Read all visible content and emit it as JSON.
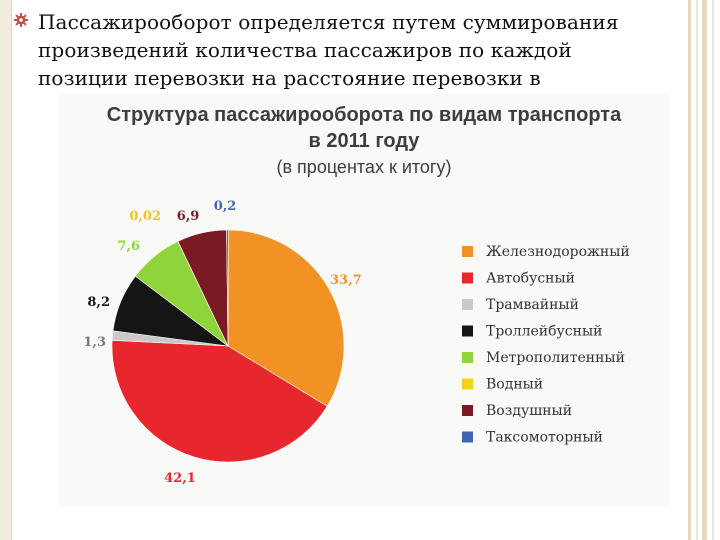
{
  "slide": {
    "bullet_text": "Пассажирооборот определяется путем суммирования произведений количества пассажиров по каждой позиции перевозки на расстояние перевозки в",
    "bullet_line_1": "Пассажирооборот определяется путем суммирования",
    "bullet_line_2": "произведений количества пассажиров по  каждой",
    "bullet_line_3": "позиции  перевозки  на  расстояние перевозки в",
    "bullet_icon": "gear-icon",
    "accent_color": "#c0504d"
  },
  "chart_data": {
    "type": "pie",
    "title_line_1": "Структура пассажирооборота по видам транспорта",
    "title_line_2": "в 2011 году",
    "subtitle": "(в процентах к итогу)",
    "legend_position": "right",
    "series": [
      {
        "name": "Железнодорожный",
        "label": "33,7",
        "value": 33.7,
        "color": "#f39224"
      },
      {
        "name": "Автобусный",
        "label": "42,1",
        "value": 42.1,
        "color": "#e8262d"
      },
      {
        "name": "Трамвайный",
        "label": "1,3",
        "value": 1.3,
        "color": "#c9c9c9"
      },
      {
        "name": "Троллейбусный",
        "label": "8,2",
        "value": 8.2,
        "color": "#151515"
      },
      {
        "name": "Метрополитенный",
        "label": "7,6",
        "value": 7.6,
        "color": "#8fd43a"
      },
      {
        "name": "Водный",
        "label": "0,02",
        "value": 0.02,
        "color": "#f2d21b"
      },
      {
        "name": "Воздушный",
        "label": "6,9",
        "value": 6.9,
        "color": "#7a1a22"
      },
      {
        "name": "Таксомоторный",
        "label": "0,2",
        "value": 0.2,
        "color": "#3f66b5"
      }
    ],
    "label_colors": {
      "Железнодорожный": "#f39224",
      "Автобусный": "#e8262d",
      "Трамвайный": "#777777",
      "Троллейбусный": "#151515",
      "Метрополитенный": "#8fd43a",
      "Водный": "#f2c21b",
      "Воздушный": "#7a1a22",
      "Таксомоторный": "#3f66b5"
    }
  }
}
